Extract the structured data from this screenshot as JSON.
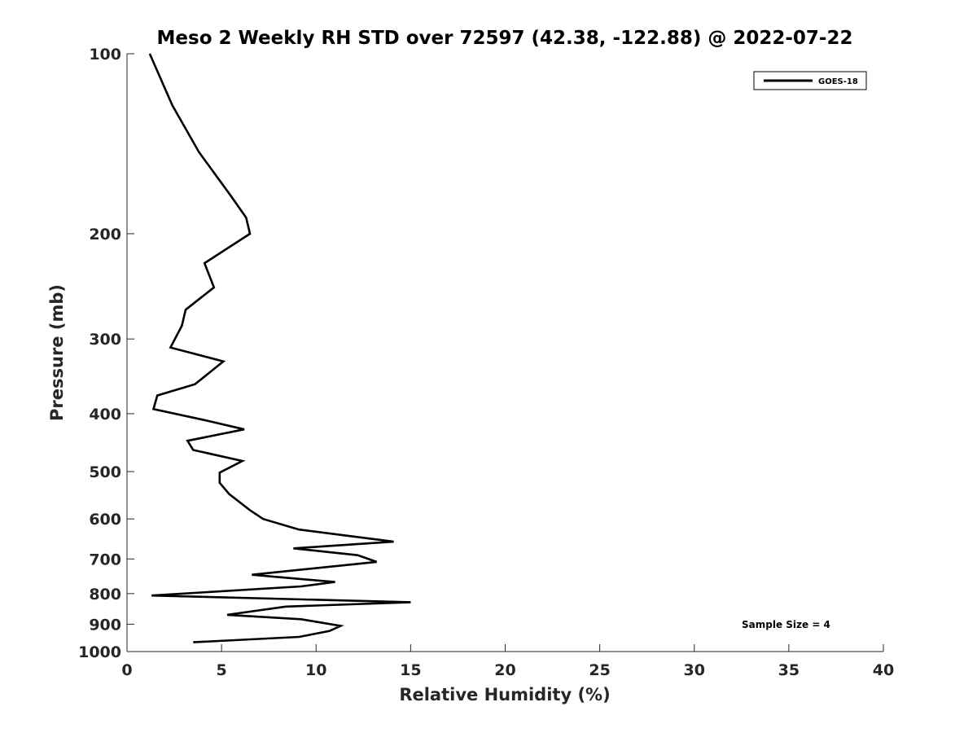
{
  "chart_data": {
    "type": "line",
    "title": "Meso 2 Weekly RH STD over 72597 (42.38, -122.88) @ 2022-07-22",
    "xlabel": "Relative Humidity (%)",
    "ylabel": "Pressure (mb)",
    "xlim": [
      0,
      40
    ],
    "ylim": [
      100,
      1000
    ],
    "yscale": "log",
    "reverse_y": true,
    "xticks": [
      0,
      5,
      10,
      15,
      20,
      25,
      30,
      35,
      40
    ],
    "yticks": [
      100,
      200,
      300,
      400,
      500,
      600,
      700,
      800,
      900,
      1000
    ],
    "legend_position": "top-right",
    "series": [
      {
        "name": "GOES-18",
        "color": "#000000",
        "x": [
          1.2,
          2.4,
          3.8,
          5.5,
          6.3,
          6.5,
          4.1,
          4.6,
          3.1,
          2.9,
          2.3,
          5.1,
          3.6,
          1.6,
          1.4,
          4.1,
          6.2,
          3.2,
          3.5,
          6.1,
          4.9,
          4.9,
          5.4,
          6.5,
          7.2,
          9.1,
          14.1,
          8.8,
          12.2,
          13.2,
          6.6,
          11.0,
          9.2,
          1.3,
          15.0,
          8.4,
          5.3,
          9.2,
          11.3,
          10.7,
          9.1,
          3.5
        ],
        "y": [
          100,
          122,
          146,
          173,
          188,
          200,
          224,
          246,
          268,
          285,
          310,
          327,
          357,
          373,
          393,
          410,
          425,
          444,
          460,
          480,
          502,
          522,
          545,
          580,
          600,
          625,
          655,
          672,
          690,
          708,
          744,
          765,
          778,
          806,
          827,
          841,
          868,
          883,
          906,
          924,
          945,
          965
        ]
      }
    ],
    "annotation": "Sample Size = 4"
  }
}
